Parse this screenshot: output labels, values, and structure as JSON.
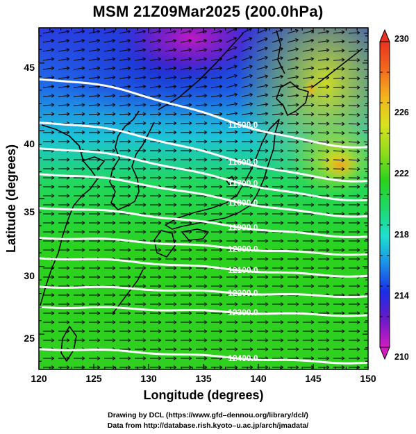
{
  "title": "MSM 21Z09Mar2025 (200.0hPa)",
  "x_axis": {
    "label": "Longitude (degrees)",
    "range": [
      120,
      150
    ],
    "ticks": [
      "120",
      "125",
      "130",
      "135",
      "140",
      "145",
      "150"
    ]
  },
  "y_axis": {
    "label": "Latitude  (degrees)",
    "range": [
      22.4,
      47.6
    ],
    "ticks": [
      "25",
      "30",
      "35",
      "40",
      "45"
    ]
  },
  "colorbar": {
    "range": [
      210,
      230
    ],
    "ticks": [
      "210",
      "214",
      "218",
      "222",
      "226",
      "230"
    ],
    "colors": [
      "#d21cc2",
      "#6a1ac8",
      "#1a2ee6",
      "#1b8fe8",
      "#1ee0d0",
      "#1ed86a",
      "#2ad21e",
      "#8fdc1e",
      "#d8e21e",
      "#f2b51e",
      "#f26a1e",
      "#e8321e"
    ]
  },
  "contours": [
    {
      "label": "11500.0",
      "lat_left": 43.8,
      "lat_right": 38.8
    },
    {
      "label": "11600.0",
      "lat_left": 40.6,
      "lat_right": 36.3
    },
    {
      "label": "11700.0",
      "lat_left": 38.7,
      "lat_right": 34.9
    },
    {
      "label": "11800.0",
      "lat_left": 36.8,
      "lat_right": 33.7
    },
    {
      "label": "11900.0",
      "lat_left": 34.3,
      "lat_right": 32.2
    },
    {
      "label": "12000.0",
      "lat_left": 32.1,
      "lat_right": 30.9
    },
    {
      "label": "12100.0",
      "lat_left": 30.6,
      "lat_right": 29.3
    },
    {
      "label": "12200.0",
      "lat_left": 28.5,
      "lat_right": 27.8
    },
    {
      "label": "12300.0",
      "lat_left": 27.0,
      "lat_right": 26.4
    },
    {
      "label": "12400.0",
      "lat_left": 23.9,
      "lat_right": 22.9
    }
  ],
  "footer": {
    "line1": "Drawing by DCL (https://www.gfd–dennou.org/library/dcl/)",
    "line2": "Data from http://database.rish.kyoto–u.ac.jp/arch/jmadata/"
  }
}
